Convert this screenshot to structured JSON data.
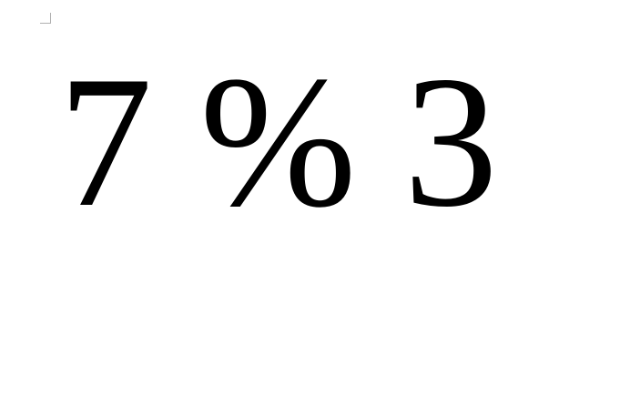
{
  "document": {
    "expression_text": "7 % 3"
  }
}
